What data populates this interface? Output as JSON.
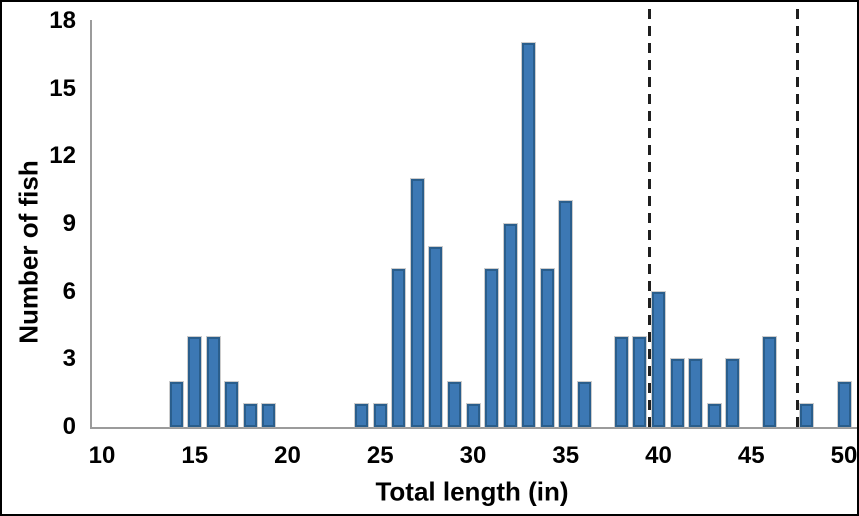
{
  "chart_data": {
    "type": "bar",
    "title": "",
    "xlabel": "Total length (in)",
    "ylabel": "Number of fish",
    "xlim": [
      10,
      50
    ],
    "ylim": [
      0,
      18
    ],
    "x_ticks": [
      10,
      15,
      20,
      25,
      30,
      35,
      40,
      45,
      50
    ],
    "y_ticks": [
      0,
      3,
      6,
      9,
      12,
      15,
      18
    ],
    "grid": "off",
    "legend": "none",
    "bar_color": "#3C78B4",
    "bar_border_color": "#2A5E8C",
    "axis_color": "#9B9B9B",
    "reference_lines": {
      "style": "dashed",
      "color": "#1F1F1F",
      "x_values": [
        39.5,
        47.5
      ]
    },
    "bars": [
      {
        "x": 14,
        "count": 2
      },
      {
        "x": 15,
        "count": 4
      },
      {
        "x": 16,
        "count": 4
      },
      {
        "x": 17,
        "count": 2
      },
      {
        "x": 18,
        "count": 1
      },
      {
        "x": 19,
        "count": 1
      },
      {
        "x": 24,
        "count": 1
      },
      {
        "x": 25,
        "count": 1
      },
      {
        "x": 26,
        "count": 7
      },
      {
        "x": 27,
        "count": 11
      },
      {
        "x": 28,
        "count": 8
      },
      {
        "x": 29,
        "count": 2
      },
      {
        "x": 30,
        "count": 1
      },
      {
        "x": 31,
        "count": 7
      },
      {
        "x": 32,
        "count": 9
      },
      {
        "x": 33,
        "count": 17
      },
      {
        "x": 34,
        "count": 7
      },
      {
        "x": 35,
        "count": 10
      },
      {
        "x": 36,
        "count": 2
      },
      {
        "x": 38,
        "count": 4
      },
      {
        "x": 39,
        "count": 4
      },
      {
        "x": 40,
        "count": 6
      },
      {
        "x": 41,
        "count": 3
      },
      {
        "x": 42,
        "count": 3
      },
      {
        "x": 43,
        "count": 1
      },
      {
        "x": 44,
        "count": 3
      },
      {
        "x": 46,
        "count": 4
      },
      {
        "x": 48,
        "count": 1
      },
      {
        "x": 50,
        "count": 2
      }
    ]
  }
}
